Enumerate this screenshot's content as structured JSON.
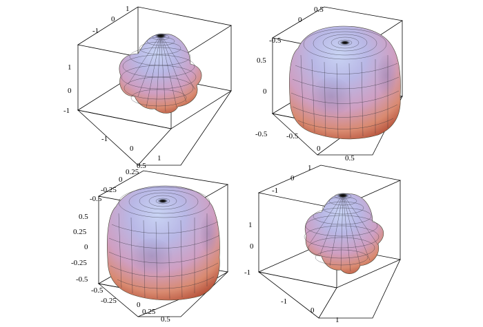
{
  "panels": [
    {
      "id": "top-left",
      "shape": "four-lobed",
      "ticks": {
        "a": [
          "1",
          "0",
          "-1"
        ],
        "b": [
          "1",
          "0",
          "-1"
        ],
        "c": [
          "-1",
          "0",
          "1"
        ]
      }
    },
    {
      "id": "top-right",
      "shape": "rounded-cube",
      "ticks": {
        "a": [
          "0.5",
          "0",
          "-0.5"
        ],
        "b": [
          "0.5",
          "0",
          "-0.5"
        ],
        "c": [
          "-0.5",
          "0",
          "0.5"
        ]
      }
    },
    {
      "id": "bottom-left",
      "shape": "rounded-cube",
      "ticks": {
        "a": [
          "0.5",
          "0.25",
          "0",
          "-0.25",
          "-0.5"
        ],
        "b": [
          "0.5",
          "0.25",
          "0",
          "-0.25",
          "-0.5"
        ],
        "c": [
          "-0.25",
          "0",
          "0.25",
          "0.5"
        ]
      }
    },
    {
      "id": "bottom-right",
      "shape": "four-lobed",
      "ticks": {
        "a": [
          "1",
          "0",
          "-1"
        ],
        "b": [
          "1",
          "0",
          "-1"
        ],
        "c": [
          "-1",
          "0",
          "1"
        ]
      }
    }
  ],
  "colors": {
    "surface_top": "#b9c6ec",
    "surface_mid": "#cfa4c8",
    "surface_bottom": "#d9825e",
    "mesh": "#2b2b36"
  }
}
